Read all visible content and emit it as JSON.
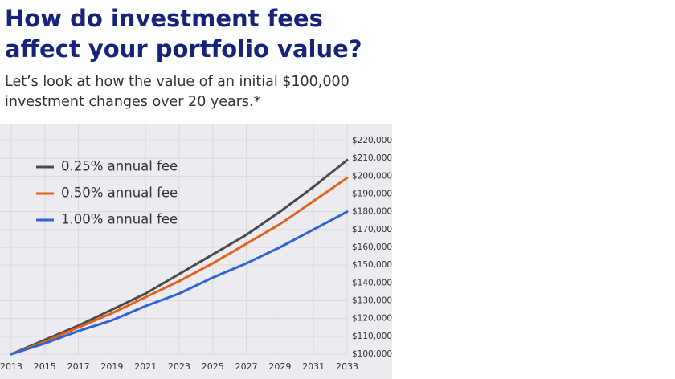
{
  "chart_data": {
    "type": "line",
    "title": "How do investment fees affect your portfolio value?",
    "subtitle": "Let’s look at how the value of an initial $100,000 investment changes over 20 years.*",
    "x": [
      2013,
      2015,
      2017,
      2019,
      2021,
      2023,
      2025,
      2027,
      2029,
      2031,
      2033
    ],
    "series": [
      {
        "name": "0.25% annual fee",
        "color": "#4a4a4c",
        "values": [
          100000,
          108000,
          116000,
          125000,
          134000,
          145000,
          156000,
          167000,
          180000,
          194000,
          209000
        ]
      },
      {
        "name": "0.50% annual fee",
        "color": "#e0621b",
        "values": [
          100000,
          107000,
          115000,
          123000,
          132000,
          141000,
          151000,
          162000,
          173000,
          186000,
          199000
        ]
      },
      {
        "name": "1.00% annual fee",
        "color": "#2f62d4",
        "values": [
          100000,
          106000,
          113000,
          119000,
          127000,
          134000,
          143000,
          151000,
          160000,
          170000,
          180000
        ]
      }
    ],
    "xlim": [
      2013,
      2033
    ],
    "xticks": [
      2013,
      2015,
      2017,
      2019,
      2021,
      2023,
      2025,
      2027,
      2029,
      2031,
      2033
    ],
    "ylim": [
      100000,
      220000
    ],
    "yticks": [
      {
        "value": 100000,
        "label": "$100,000"
      },
      {
        "value": 110000,
        "label": "$110,000"
      },
      {
        "value": 120000,
        "label": "$120,000"
      },
      {
        "value": 130000,
        "label": "$130,000"
      },
      {
        "value": 140000,
        "label": "$140,000"
      },
      {
        "value": 150000,
        "label": "$150,000"
      },
      {
        "value": 160000,
        "label": "$160,000"
      },
      {
        "value": 170000,
        "label": "$170,000"
      },
      {
        "value": 180000,
        "label": "$180,000"
      },
      {
        "value": 190000,
        "label": "$190,000"
      },
      {
        "value": 200000,
        "label": "$200,000"
      },
      {
        "value": 210000,
        "label": "$210,000"
      },
      {
        "value": 220000,
        "label": "$220,000"
      }
    ],
    "grid": true,
    "legend": "upper left"
  }
}
